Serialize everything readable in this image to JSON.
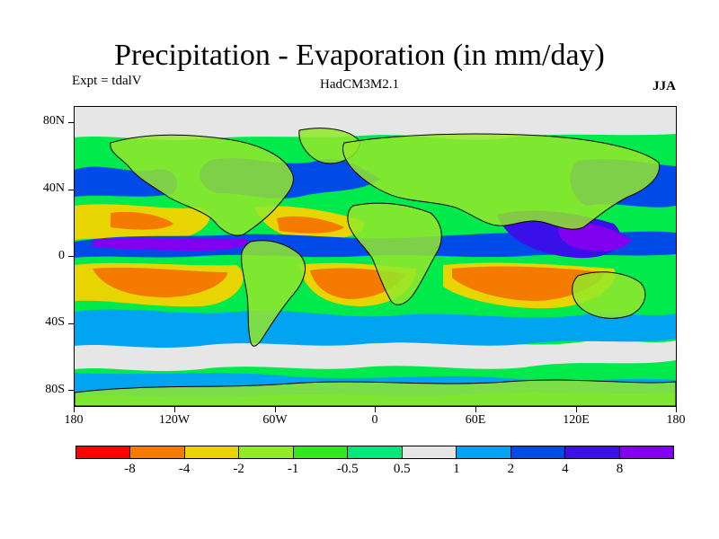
{
  "header": {
    "title": "Precipitation - Evaporation (in mm/day)",
    "expt_label": "Expt = tdalV",
    "model_label": "HadCM3M2.1",
    "season_label": "JJA"
  },
  "axes": {
    "lat_labels": [
      "80N",
      "40N",
      "0",
      "40S",
      "80S"
    ],
    "lon_labels": [
      "180",
      "120W",
      "60W",
      "0",
      "60E",
      "120E",
      "180"
    ],
    "lat_range": [
      -90,
      90
    ],
    "lon_range": [
      -180,
      180
    ]
  },
  "colorbar": {
    "labels": [
      "-8",
      "-4",
      "-2",
      "-1",
      "-0.5",
      "0.5",
      "1",
      "2",
      "4",
      "8"
    ],
    "colors": [
      "#ff0000",
      "#f57b00",
      "#e7d400",
      "#93e82a",
      "#33e620",
      "#00e87a",
      "#e6e6e6",
      "#00a4f0",
      "#004ae8",
      "#3a10e8",
      "#8000f0"
    ]
  },
  "map_colors": {
    "ocean_base": "#00ea4c",
    "dry_strong": "#f57b00",
    "dry": "#e7d400",
    "dry_weak": "#93e82a",
    "neutral": "#e6e6e6",
    "wet_weak": "#00a4f0",
    "wet": "#004ae8",
    "wet_strong": "#3a10e8",
    "wet_max": "#8000f0",
    "coast": "#000000"
  }
}
